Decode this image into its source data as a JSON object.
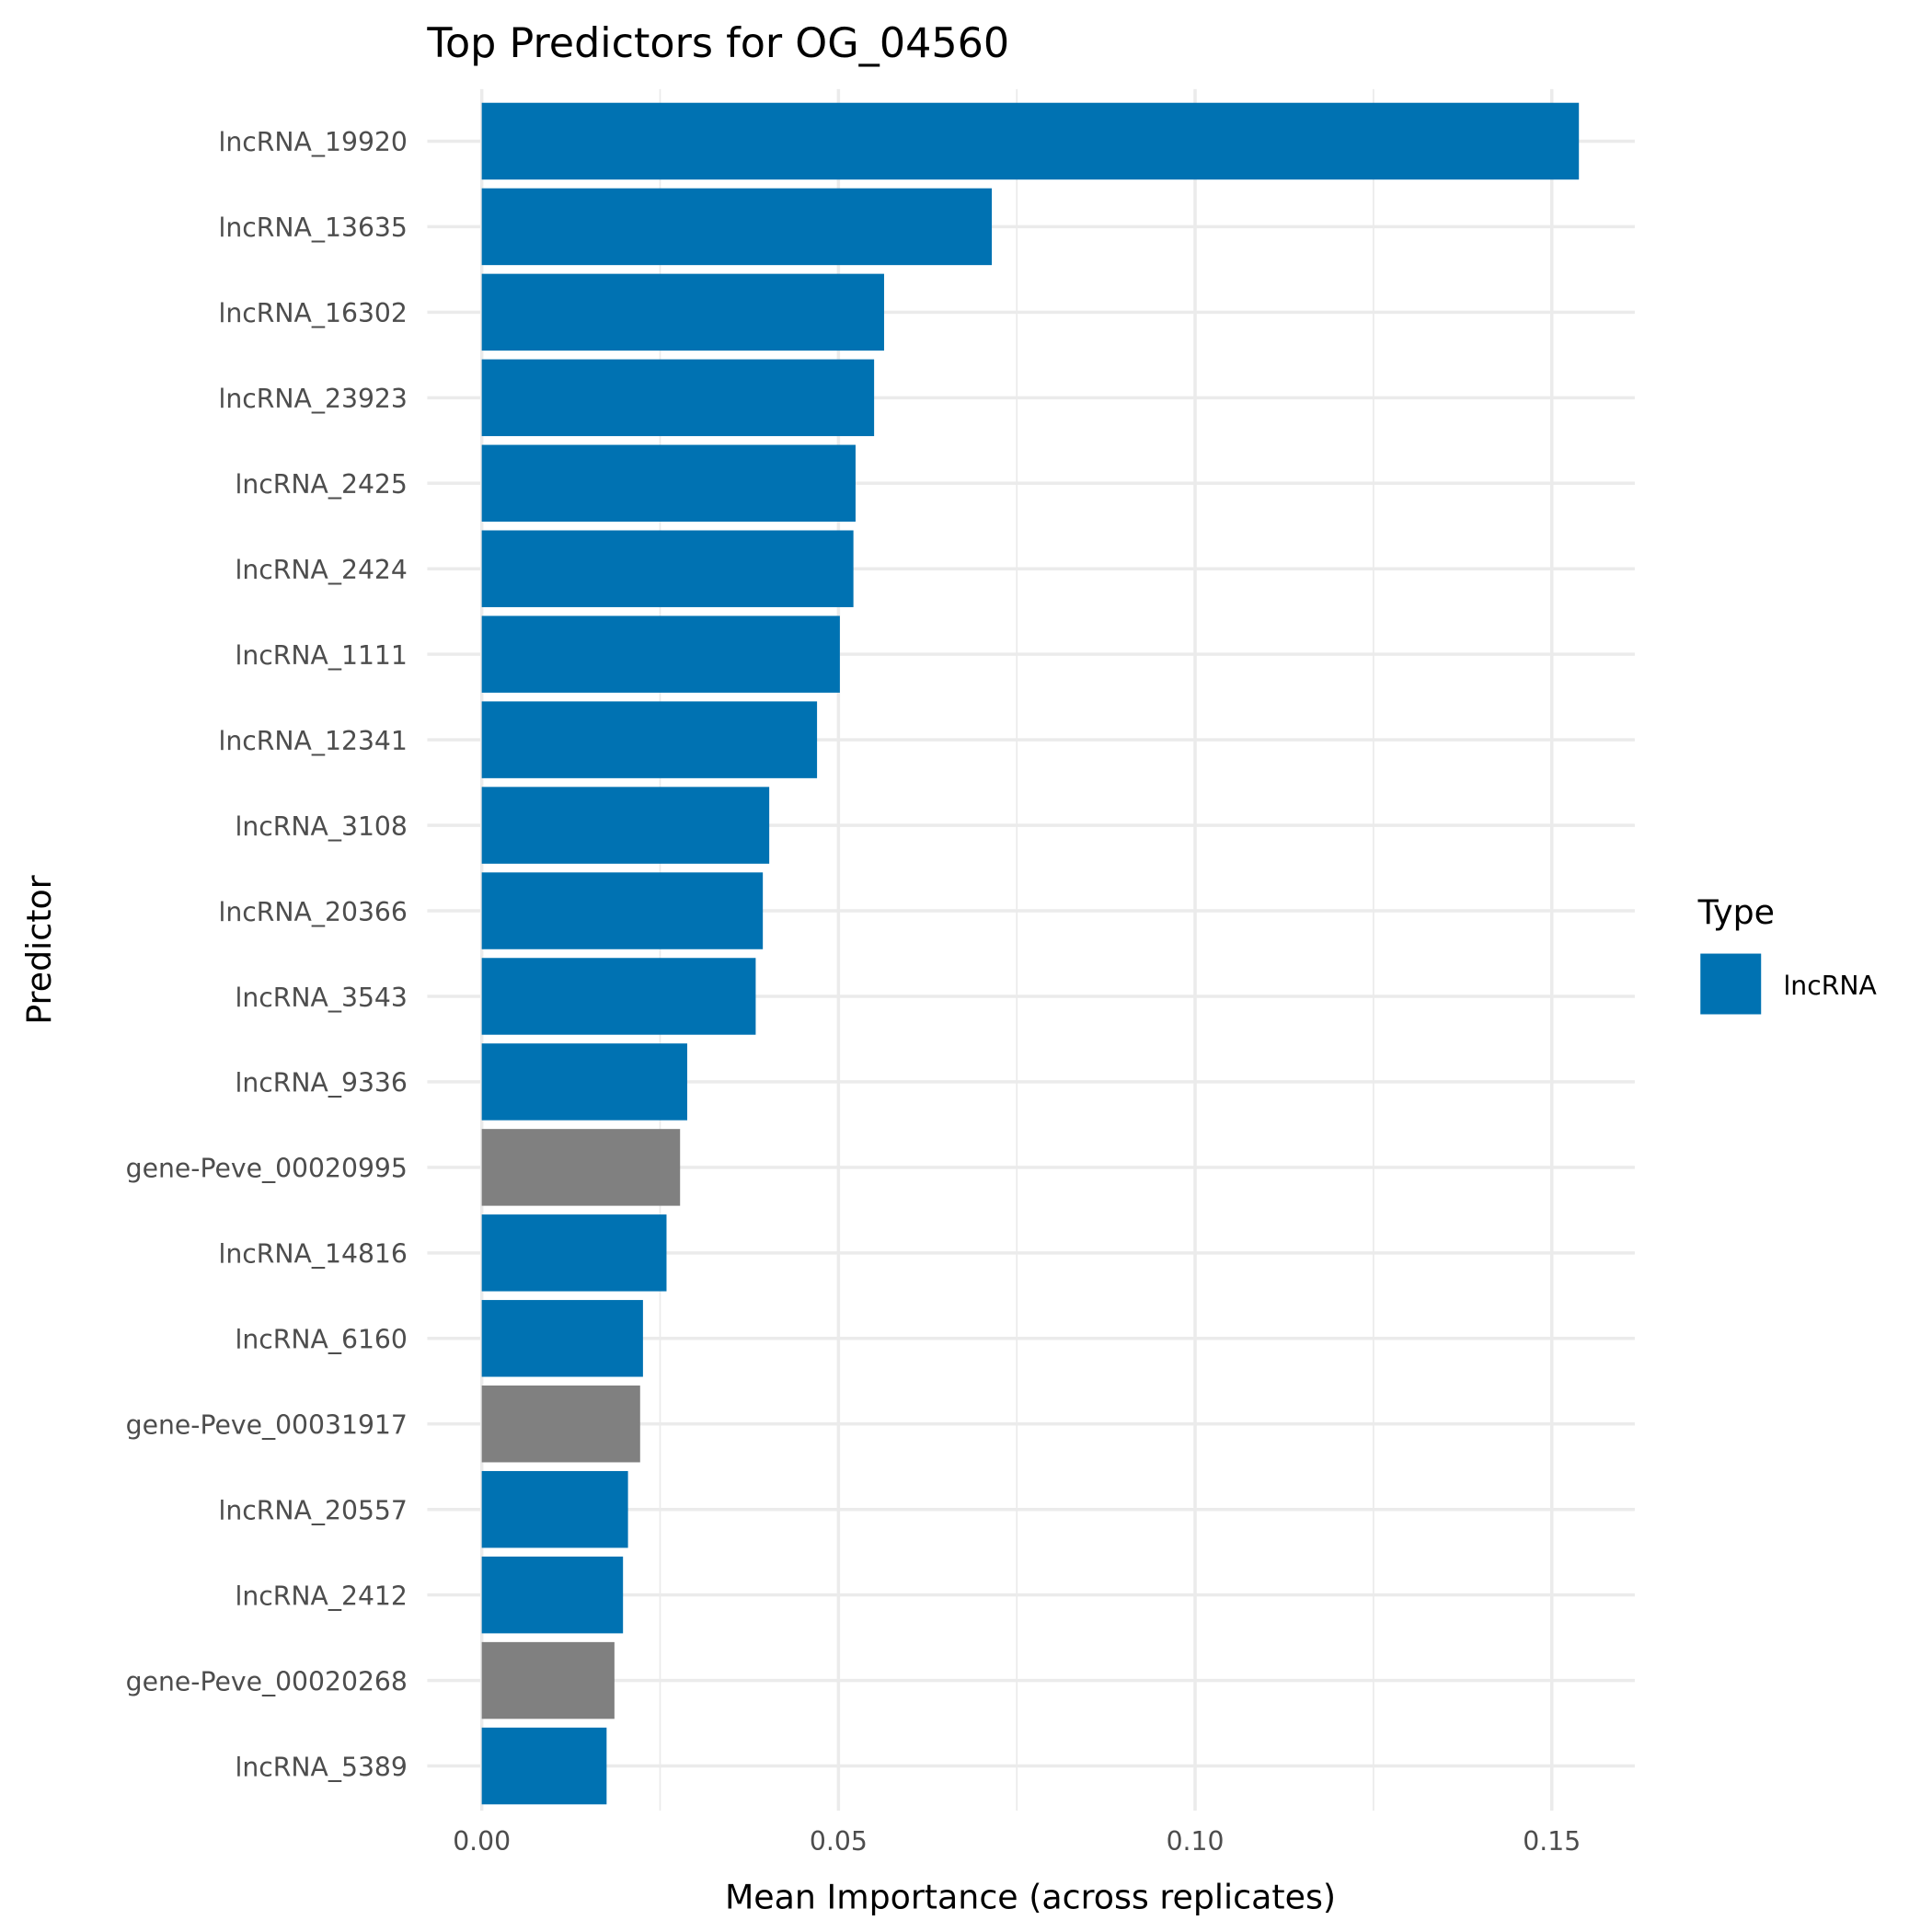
{
  "chart_data": {
    "type": "bar",
    "orientation": "horizontal",
    "title": "Top Predictors for OG_04560",
    "xlabel": "Mean Importance (across replicates)",
    "ylabel": "Predictor",
    "xlim": [
      0,
      0.162
    ],
    "xticks": [
      0,
      0.05,
      0.1,
      0.15
    ],
    "xtick_labels": [
      "0.00",
      "0.05",
      "0.10",
      "0.15"
    ],
    "grid": true,
    "legend": {
      "title": "Type",
      "position": "right",
      "entries": [
        {
          "label": "lncRNA",
          "color": "#0072B2"
        }
      ]
    },
    "colors": {
      "lncRNA": "#0072B2",
      "gene": "#808080"
    },
    "categories": [
      "lncRNA_19920",
      "lncRNA_13635",
      "lncRNA_16302",
      "lncRNA_23923",
      "lncRNA_2425",
      "lncRNA_2424",
      "lncRNA_1111",
      "lncRNA_12341",
      "lncRNA_3108",
      "lncRNA_20366",
      "lncRNA_3543",
      "lncRNA_9336",
      "gene-Peve_00020995",
      "lncRNA_14816",
      "lncRNA_6160",
      "gene-Peve_00031917",
      "lncRNA_20557",
      "lncRNA_2412",
      "gene-Peve_00020268",
      "lncRNA_5389"
    ],
    "types": [
      "lncRNA",
      "lncRNA",
      "lncRNA",
      "lncRNA",
      "lncRNA",
      "lncRNA",
      "lncRNA",
      "lncRNA",
      "lncRNA",
      "lncRNA",
      "lncRNA",
      "lncRNA",
      "gene",
      "lncRNA",
      "lncRNA",
      "gene",
      "lncRNA",
      "lncRNA",
      "gene",
      "lncRNA"
    ],
    "values": [
      0.1538,
      0.0715,
      0.0564,
      0.055,
      0.0524,
      0.0521,
      0.0502,
      0.047,
      0.0403,
      0.0394,
      0.0384,
      0.0288,
      0.0278,
      0.0259,
      0.0226,
      0.0222,
      0.0205,
      0.0198,
      0.0186,
      0.0175
    ]
  }
}
